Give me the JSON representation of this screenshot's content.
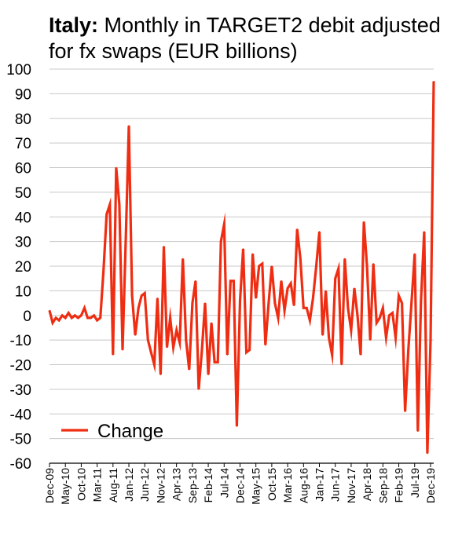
{
  "title": {
    "country": "Italy",
    "separator": ":",
    "text": " Monthly in TARGET2 debit adjusted for fx swaps (EUR billions)"
  },
  "colors": {
    "series": "#ee2d12",
    "grid": "#c8c8c8",
    "axis": "#000000"
  },
  "chart_data": {
    "type": "line",
    "title": "Italy: Monthly in TARGET2 debit adjusted for fx swaps (EUR billions)",
    "xlabel": "",
    "ylabel": "",
    "ylim": [
      -60,
      100
    ],
    "yticks": [
      100,
      90,
      80,
      70,
      60,
      50,
      40,
      30,
      20,
      10,
      0,
      -10,
      -20,
      -30,
      -40,
      -50,
      -60
    ],
    "ytick_labels": [
      "100",
      "90",
      "80",
      "70",
      "60",
      "50",
      "40",
      "30",
      "20",
      "10",
      "0",
      "-10",
      "-20",
      "-30",
      "-40",
      "-50",
      "-60"
    ],
    "grid": true,
    "legend_position": "bottom-left",
    "xtick_labels": [
      "Dec-09",
      "May-10",
      "Oct-10",
      "Mar-11",
      "Aug-11",
      "Jan-12",
      "Jun-12",
      "Nov-12",
      "Apr-13",
      "Sep-13",
      "Feb-14",
      "Jul-14",
      "Dec-14",
      "May-15",
      "Oct-15",
      "Mar-16",
      "Aug-16",
      "Jan-17",
      "Jun-17",
      "Nov-17",
      "Apr-18",
      "Sep-18",
      "Feb-19",
      "Jul-19",
      "Dec-19"
    ],
    "tick_every": 5,
    "series": [
      {
        "name": "Change",
        "values": [
          2,
          -3,
          -1,
          -2,
          0,
          -1,
          1,
          -1,
          0,
          -1,
          0,
          3,
          -1,
          -1,
          0,
          -2,
          -1,
          18,
          41,
          45,
          -16,
          60,
          45,
          -14,
          30,
          77,
          8,
          -8,
          3,
          8,
          9,
          -10,
          -15,
          -20,
          7,
          -24,
          28,
          -13,
          -1,
          -13,
          -6,
          -11,
          23,
          -10,
          -22,
          5,
          14,
          -30,
          -14,
          5,
          -24,
          -3,
          -19,
          -19,
          30,
          37,
          -16,
          14,
          14,
          -45,
          6,
          27,
          -15,
          -14,
          25,
          7,
          20,
          21,
          -12,
          5,
          20,
          5,
          -1,
          14,
          2,
          11,
          13,
          4,
          35,
          23,
          3,
          3,
          -2,
          7,
          20,
          34,
          -8,
          10,
          -9,
          -16,
          15,
          19,
          -20,
          23,
          3,
          -6,
          11,
          0,
          -16,
          38,
          20,
          -10,
          21,
          -3,
          -1,
          3,
          -9,
          0,
          1,
          -9,
          8,
          5,
          -39,
          -14,
          5,
          25,
          -47,
          6,
          34,
          -56,
          -10,
          95
        ]
      }
    ]
  }
}
